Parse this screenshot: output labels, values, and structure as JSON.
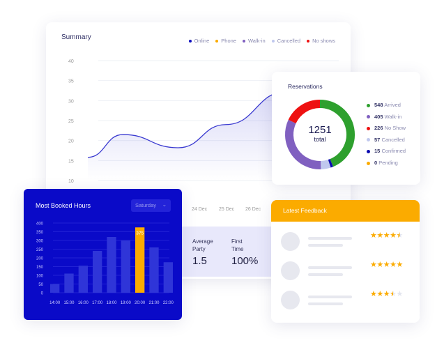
{
  "summary": {
    "title": "Summary",
    "legend": [
      {
        "label": "Online",
        "color": "#1010c0"
      },
      {
        "label": "Phone",
        "color": "#fbab00"
      },
      {
        "label": "Walk-in",
        "color": "#8060c0"
      },
      {
        "label": "Cancelled",
        "color": "#c0c8ee"
      },
      {
        "label": "No shows",
        "color": "#ee1111"
      }
    ],
    "chart_data": {
      "type": "area",
      "y_ticks": [
        10,
        15,
        20,
        25,
        30,
        35,
        40
      ],
      "ylim": [
        10,
        40
      ],
      "x_ticks": [
        "24 Dec",
        "25 Dec",
        "26 Dec"
      ],
      "series": [
        {
          "color": "#3a3ad0",
          "points": [
            [
              0,
              15.8
            ],
            [
              0.14,
              21.5
            ],
            [
              0.36,
              18.2
            ],
            [
              0.55,
              24
            ],
            [
              0.79,
              32.2
            ],
            [
              0.95,
              32
            ]
          ]
        }
      ],
      "grid": true
    },
    "stats": [
      {
        "label": "Average Party",
        "value": "1.5"
      },
      {
        "label": "First Time",
        "value": "100%"
      }
    ]
  },
  "reservations": {
    "title": "Reservations",
    "total": "1251",
    "total_label": "total",
    "chart_data": {
      "type": "pie",
      "items": [
        {
          "value": 548,
          "label": "Arrived",
          "color": "#2ea02e"
        },
        {
          "value": 15,
          "label": "Confirmed",
          "color": "#0b0bb0"
        },
        {
          "value": 57,
          "label": "Cancelled",
          "color": "#c0c8ee"
        },
        {
          "value": 405,
          "label": "Walk-in",
          "color": "#8060c0"
        },
        {
          "value": 226,
          "label": "No Show",
          "color": "#ee1111"
        },
        {
          "value": 0,
          "label": "Pending",
          "color": "#fbab00"
        }
      ]
    },
    "legend": [
      {
        "n": "548",
        "label": "Arrived",
        "color": "#2ea02e"
      },
      {
        "n": "405",
        "label": "Walk-in",
        "color": "#8060c0"
      },
      {
        "n": "226",
        "label": "No Show",
        "color": "#ee1111"
      },
      {
        "n": "57",
        "label": "Cancelled",
        "color": "#c0c8ee"
      },
      {
        "n": "15",
        "label": "Confirmed",
        "color": "#0b0bb0"
      },
      {
        "n": "0",
        "label": "Pending",
        "color": "#fbab00"
      }
    ]
  },
  "hours": {
    "title": "Most Booked Hours",
    "day": "Saturday",
    "chart_data": {
      "type": "bar",
      "categories": [
        "14:00",
        "15:00",
        "16:00",
        "17:00",
        "18:00",
        "19:00",
        "20:00",
        "21:00",
        "22:00"
      ],
      "values": [
        50,
        110,
        155,
        240,
        320,
        300,
        375,
        260,
        175
      ],
      "highlight": "20:00",
      "highlight_label": "375",
      "y_ticks": [
        0,
        50,
        100,
        150,
        200,
        250,
        300,
        350,
        400
      ],
      "ylim": [
        0,
        400
      ],
      "bar_color": "#2f35d8",
      "highlight_color": "#fbab00"
    }
  },
  "feedback": {
    "title": "Latest Feedback",
    "ratings": [
      4.5,
      5,
      3.5
    ]
  }
}
